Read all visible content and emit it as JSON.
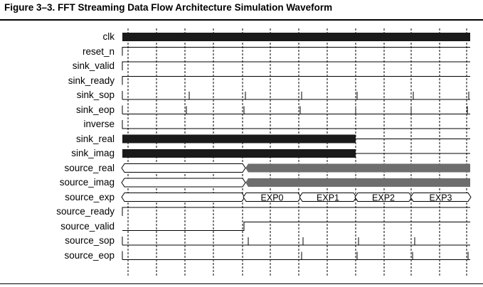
{
  "figure": {
    "title": "Figure 3–3.  FFT Streaming Data Flow Architecture Simulation Waveform"
  },
  "signals": [
    {
      "name": "clk"
    },
    {
      "name": "reset_n"
    },
    {
      "name": "sink_valid"
    },
    {
      "name": "sink_ready"
    },
    {
      "name": "sink_sop"
    },
    {
      "name": "sink_eop"
    },
    {
      "name": "inverse"
    },
    {
      "name": "sink_real"
    },
    {
      "name": "sink_imag"
    },
    {
      "name": "source_real"
    },
    {
      "name": "source_imag"
    },
    {
      "name": "source_exp"
    },
    {
      "name": "source_ready"
    },
    {
      "name": "source_valid"
    },
    {
      "name": "source_sop"
    },
    {
      "name": "source_eop"
    }
  ],
  "exp_labels": [
    "EXP0",
    "EXP1",
    "EXP2",
    "EXP3"
  ],
  "colors": {
    "solid_bus": "#1a1a1a",
    "gray_bus": "#6e6e6e",
    "grid": "#000000"
  }
}
